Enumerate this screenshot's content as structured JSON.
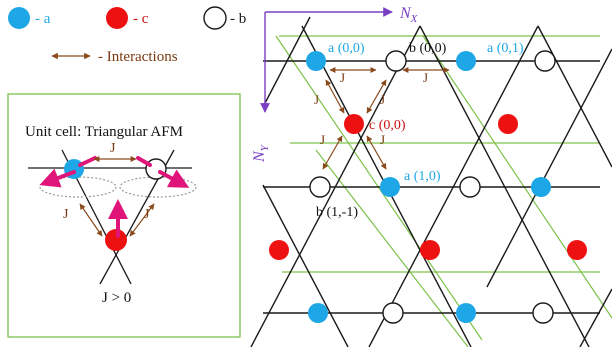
{
  "legend": {
    "a": "- a",
    "c": "- c",
    "b": "- b",
    "interactions": "- Interactions"
  },
  "colors": {
    "a_site": "#1ea7e6",
    "c_site": "#ee1111",
    "b_site": "#ffffff",
    "bond": "#1a1a1a",
    "interaction_arrow": "#8b4a1c",
    "interaction_text": "#7a3a10",
    "axis_arrow": "#7a3fc2",
    "cell_line": "#7dc24a",
    "spin_arrow": "#e0157a",
    "a_label": "#1ea7e6",
    "c_label": "#cc1111"
  },
  "unit_cell": {
    "title": "Unit cell: Triangular AFM",
    "coupling_label": "J",
    "condition": "J > 0"
  },
  "lattice": {
    "axis_x": "N",
    "axis_x_sub": "X",
    "axis_y": "N",
    "axis_y_sub": "Y",
    "coupling_label": "J",
    "site_labels": {
      "a00": "a (0,0)",
      "b00": "b (0,0)",
      "a01": "a (0,1)",
      "c00": "c (0,0)",
      "a10": "a (1,0)",
      "b1m1": "b (1,-1)"
    }
  }
}
